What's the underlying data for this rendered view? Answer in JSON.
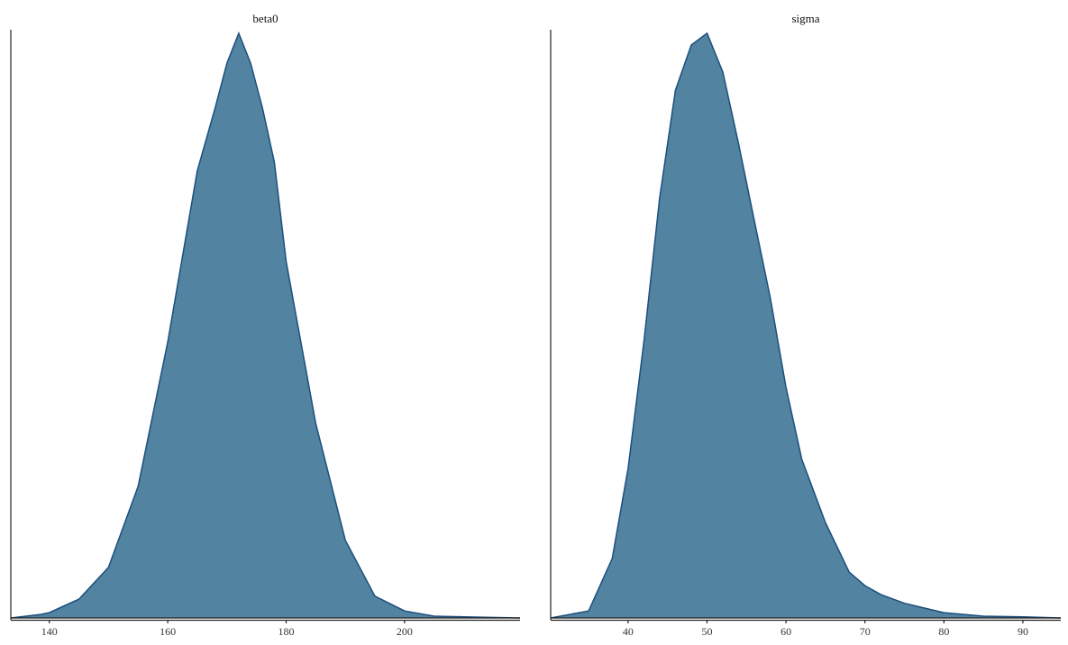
{
  "chart_data": [
    {
      "type": "area",
      "title": "beta0",
      "color": "#5283a1",
      "line_color": "#1c4f7e",
      "x": [
        133.5,
        138.5,
        140,
        145,
        150,
        155,
        160,
        165,
        168,
        170,
        172,
        174,
        176,
        178,
        180,
        185,
        190,
        195,
        200,
        205,
        210,
        219.5
      ],
      "values": [
        0,
        0.006,
        0.009,
        0.032,
        0.086,
        0.224,
        0.469,
        0.76,
        0.867,
        0.943,
        0.994,
        0.943,
        0.867,
        0.775,
        0.606,
        0.331,
        0.132,
        0.037,
        0.012,
        0.003,
        0.002,
        0
      ],
      "xlim": [
        133.5,
        219.5
      ],
      "ylim": [
        0,
        1
      ],
      "xticks": [
        140,
        160,
        180,
        200
      ]
    },
    {
      "type": "area",
      "title": "sigma",
      "color": "#5283a1",
      "line_color": "#1c4f7e",
      "x": [
        30.2,
        35,
        38,
        40,
        42,
        44,
        46,
        48,
        50,
        52,
        54,
        56,
        58,
        60,
        62,
        65,
        68,
        70,
        72,
        75,
        80,
        85,
        90,
        94.8
      ],
      "values": [
        0,
        0.012,
        0.101,
        0.254,
        0.469,
        0.714,
        0.897,
        0.974,
        0.994,
        0.928,
        0.806,
        0.675,
        0.545,
        0.392,
        0.27,
        0.162,
        0.078,
        0.055,
        0.04,
        0.025,
        0.009,
        0.003,
        0.002,
        0
      ],
      "xlim": [
        30.2,
        94.8
      ],
      "ylim": [
        0,
        1
      ],
      "xticks": [
        40,
        50,
        60,
        70,
        80,
        90
      ]
    }
  ]
}
